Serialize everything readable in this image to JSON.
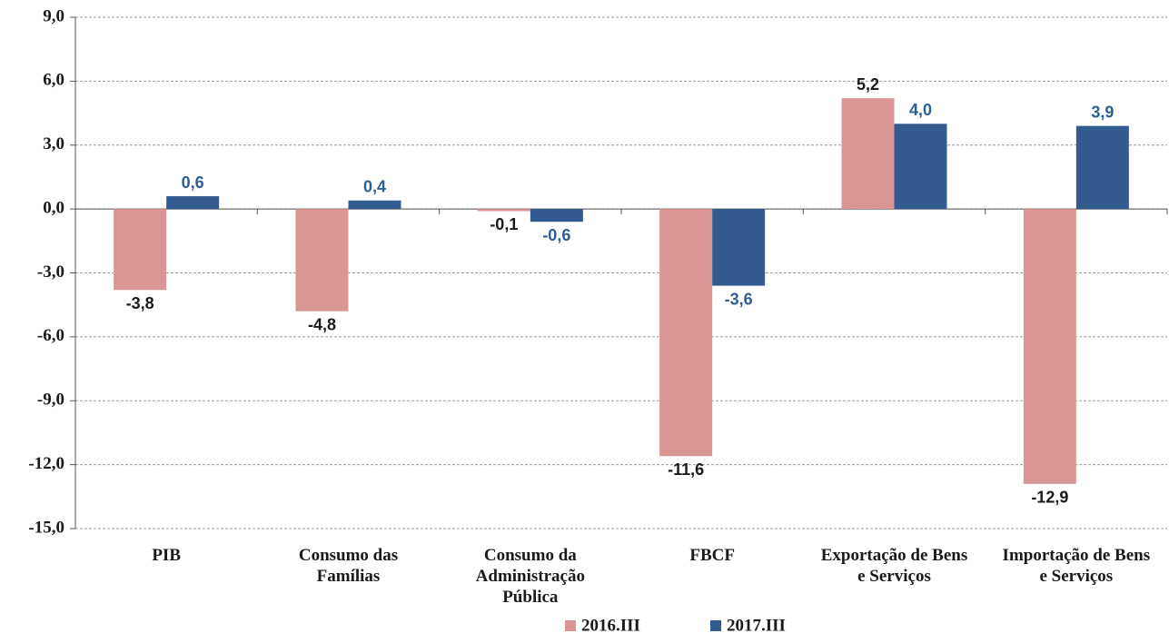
{
  "chart_data": {
    "type": "bar",
    "categories": [
      "PIB",
      "Consumo das Famílias",
      "Consumo da Administração Pública",
      "FBCF",
      "Exportação de Bens e Serviços",
      "Importação de Bens e Serviços"
    ],
    "series": [
      {
        "name": "2016.III",
        "color": "#d99694",
        "label_color": "#1a1a1a",
        "values": [
          -3.8,
          -4.8,
          -0.1,
          -11.6,
          5.2,
          -12.9
        ],
        "value_labels": [
          "-3,8",
          "-4,8",
          "-0,1",
          "-11,6",
          "5,2",
          "-12,9"
        ]
      },
      {
        "name": "2017.III",
        "color": "#335b8f",
        "label_color": "#2e5d96",
        "values": [
          0.6,
          0.4,
          -0.6,
          -3.6,
          4.0,
          3.9
        ],
        "value_labels": [
          "0,6",
          "0,4",
          "-0,6",
          "-3,6",
          "4,0",
          "3,9"
        ]
      }
    ],
    "ylim": [
      -15,
      9
    ],
    "yticks": [
      {
        "value": -15,
        "label": "-15,0"
      },
      {
        "value": -12,
        "label": "-12,0"
      },
      {
        "value": -9,
        "label": "-9,0"
      },
      {
        "value": -6,
        "label": "-6,0"
      },
      {
        "value": -3,
        "label": "-3,0"
      },
      {
        "value": 0,
        "label": "0,0"
      },
      {
        "value": 3,
        "label": "3,0"
      },
      {
        "value": 6,
        "label": "6,0"
      },
      {
        "value": 9,
        "label": "9,0"
      }
    ],
    "grid": true,
    "legend": "bottom"
  }
}
